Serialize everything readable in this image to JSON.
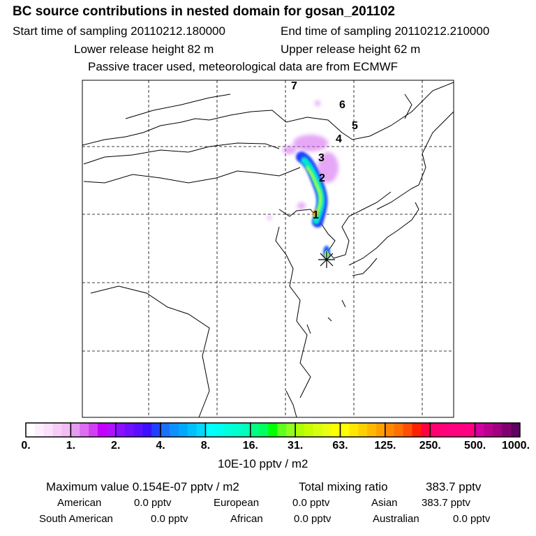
{
  "title": "BC  source contributions in nested domain for gosan_201102",
  "start_label": "Start time of sampling 20110212.180000",
  "end_label": "End time of sampling 20110212.210000",
  "lower_label": "Lower release height   82 m",
  "upper_label": "Upper release height   62 m",
  "note": "Passive tracer used, meteorological data are from ECMWF",
  "map": {
    "trajectory_labels": [
      "1",
      "2",
      "3",
      "4",
      "5",
      "6",
      "7"
    ],
    "receptor_marker": "star-icon"
  },
  "colorbar": {
    "labels": [
      "0.",
      "1.",
      "2.",
      "4.",
      "8.",
      "16.",
      "31.",
      "63.",
      "125.",
      "250.",
      "500.",
      "1000."
    ],
    "unit": "10E-10 pptv / m2",
    "colors": [
      [
        "#ffffff",
        "#fdeefd",
        "#fbe0fb",
        "#f7cdf7",
        "#f2bcf4"
      ],
      [
        "#e69af2",
        "#dc6ef0",
        "#d040f2",
        "#c400ff",
        "#b010ff"
      ],
      [
        "#8a10ff",
        "#7010ff",
        "#5a10ff",
        "#3a10ff",
        "#2040ff"
      ],
      [
        "#1a70ff",
        "#1090ff",
        "#00a8ff",
        "#00c0ff",
        "#00d8ff"
      ],
      [
        "#00ffff",
        "#00ffee",
        "#00ffdd",
        "#00ffcc",
        "#00ffb8"
      ],
      [
        "#00ff80",
        "#00ff60",
        "#00ff00",
        "#60ff20",
        "#90ff20"
      ],
      [
        "#b0ff00",
        "#c8ff00",
        "#d8ff10",
        "#e8ff10",
        "#ffff00"
      ],
      [
        "#ffff00",
        "#ffe800",
        "#ffd000",
        "#ffb800",
        "#ffa000"
      ],
      [
        "#ff8800",
        "#ff7000",
        "#ff5000",
        "#ff2000",
        "#ff0040"
      ],
      [
        "#ff0070",
        "#ff0078",
        "#ff0080",
        "#ff0080",
        "#ff0080"
      ],
      [
        "#d000a0",
        "#b8008c",
        "#a00080",
        "#800070",
        "#600060"
      ]
    ]
  },
  "stats": {
    "max_label": "Maximum value  0.154E-07 pptv / m2",
    "total_label": "Total mixing ratio",
    "total_value": "383.7 pptv",
    "rows": [
      [
        {
          "name": "American",
          "value": "0.0 pptv"
        },
        {
          "name": "European",
          "value": "0.0 pptv"
        },
        {
          "name": "Asian",
          "value": "383.7 pptv"
        }
      ],
      [
        {
          "name": "South American",
          "value": "0.0 pptv"
        },
        {
          "name": "African",
          "value": "0.0 pptv"
        },
        {
          "name": "Australian",
          "value": "0.0 pptv"
        }
      ]
    ]
  }
}
